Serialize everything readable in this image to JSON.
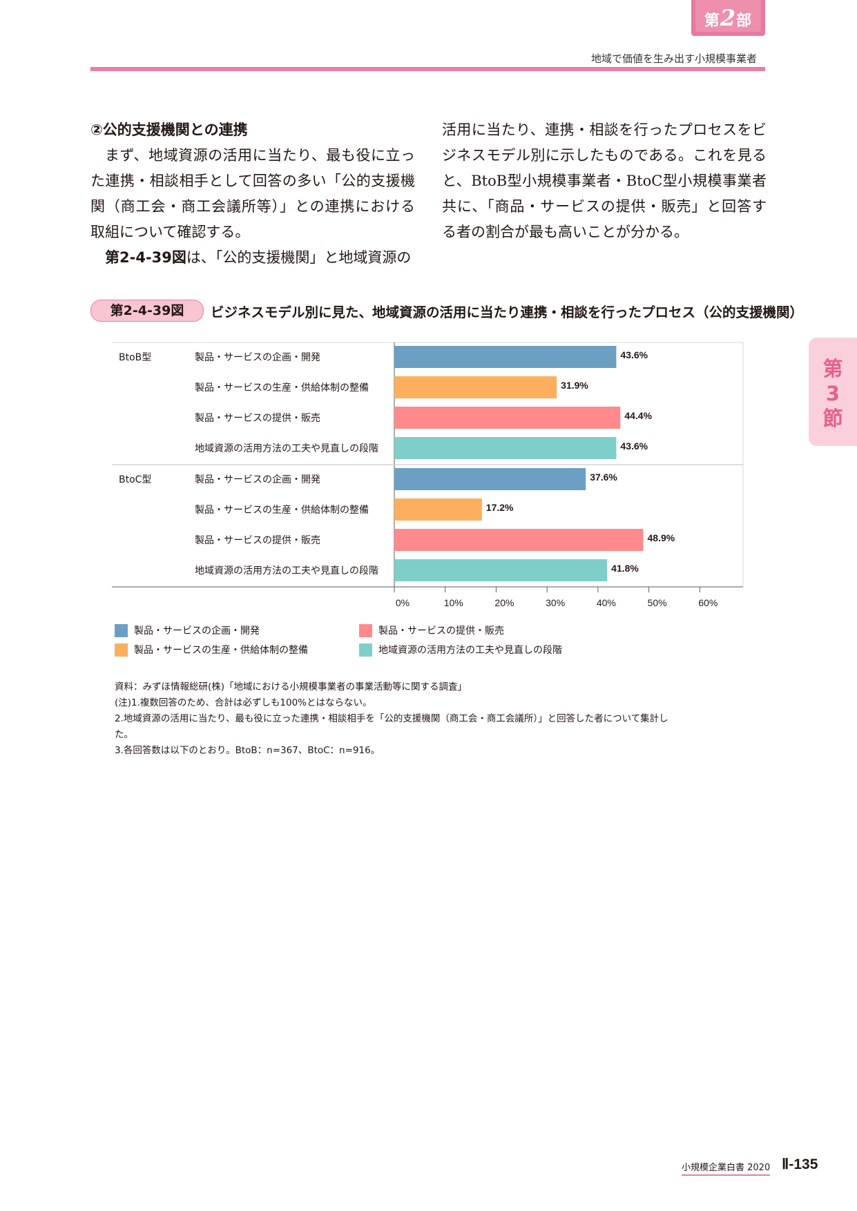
{
  "header": {
    "part_prefix": "第",
    "part_number": "2",
    "part_suffix": "部",
    "subtitle": "地域で価値を生み出す小規模事業者"
  },
  "side_tab": {
    "line1": "第",
    "line2": "3",
    "line3": "節"
  },
  "body": {
    "left": {
      "heading": "②公的支援機関との連携",
      "para1": "まず、地域資源の活用に当たり、最も役に立った連携・相談相手として回答の多い「公的支援機関（商工会・商工会議所等）」との連携における取組について確認する。",
      "para2_ref": "第2-4-39図",
      "para2": "は、「公的支援機関」と地域資源の"
    },
    "right": {
      "para": "活用に当たり、連携・相談を行ったプロセスをビジネスモデル別に示したものである。これを見ると、BtoB型小規模事業者・BtoC型小規模事業者共に、「商品・サービスの提供・販売」と回答する者の割合が最も高いことが分かる。"
    }
  },
  "figure": {
    "badge": "第2-4-39図",
    "title": "ビジネスモデル別に見た、地域資源の活用に当たり連携・相談を行ったプロセス（公的支援機関）"
  },
  "chart_data": {
    "type": "bar",
    "orientation": "horizontal",
    "groups": [
      "BtoB型",
      "BtoC型"
    ],
    "categories": [
      "製品・サービスの企画・開発",
      "製品・サービスの生産・供給体制の整備",
      "製品・サービスの提供・販売",
      "地域資源の活用方法の工夫や見直しの段階"
    ],
    "colors": [
      "#6c9fc4",
      "#fdaf5e",
      "#fe8a8b",
      "#7ecfc9"
    ],
    "values": {
      "BtoB型": [
        43.6,
        31.9,
        44.4,
        43.6
      ],
      "BtoC型": [
        37.6,
        17.2,
        48.9,
        41.8
      ]
    },
    "value_labels": {
      "BtoB型": [
        "43.6%",
        "31.9%",
        "44.4%",
        "43.6%"
      ],
      "BtoC型": [
        "37.6%",
        "17.2%",
        "48.9%",
        "41.8%"
      ]
    },
    "xlim": [
      0,
      60
    ],
    "xticks": [
      0,
      10,
      20,
      30,
      40,
      50,
      60
    ],
    "xtick_labels": [
      "0%",
      "10%",
      "20%",
      "30%",
      "40%",
      "50%",
      "60%"
    ],
    "legend": [
      "製品・サービスの企画・開発",
      "製品・サービスの生産・供給体制の整備",
      "製品・サービスの提供・販売",
      "地域資源の活用方法の工夫や見直しの段階"
    ],
    "legend_placement": "bottom"
  },
  "notes": [
    "資料：みずほ情報総研(株)「地域における小規模事業者の事業活動等に関する調査」",
    "(注)1.複数回答のため、合計は必ずしも100%とはならない。",
    "2.地域資源の活用に当たり、最も役に立った連携・相談相手を「公的支援機関（商工会・商工会議所）」と回答した者について集計し",
    "た。",
    "3.各回答数は以下のとおり。BtoB：n=367、BtoC：n=916。"
  ],
  "footer": {
    "book": "小規模企業白書  2020",
    "page": "Ⅱ-135"
  }
}
